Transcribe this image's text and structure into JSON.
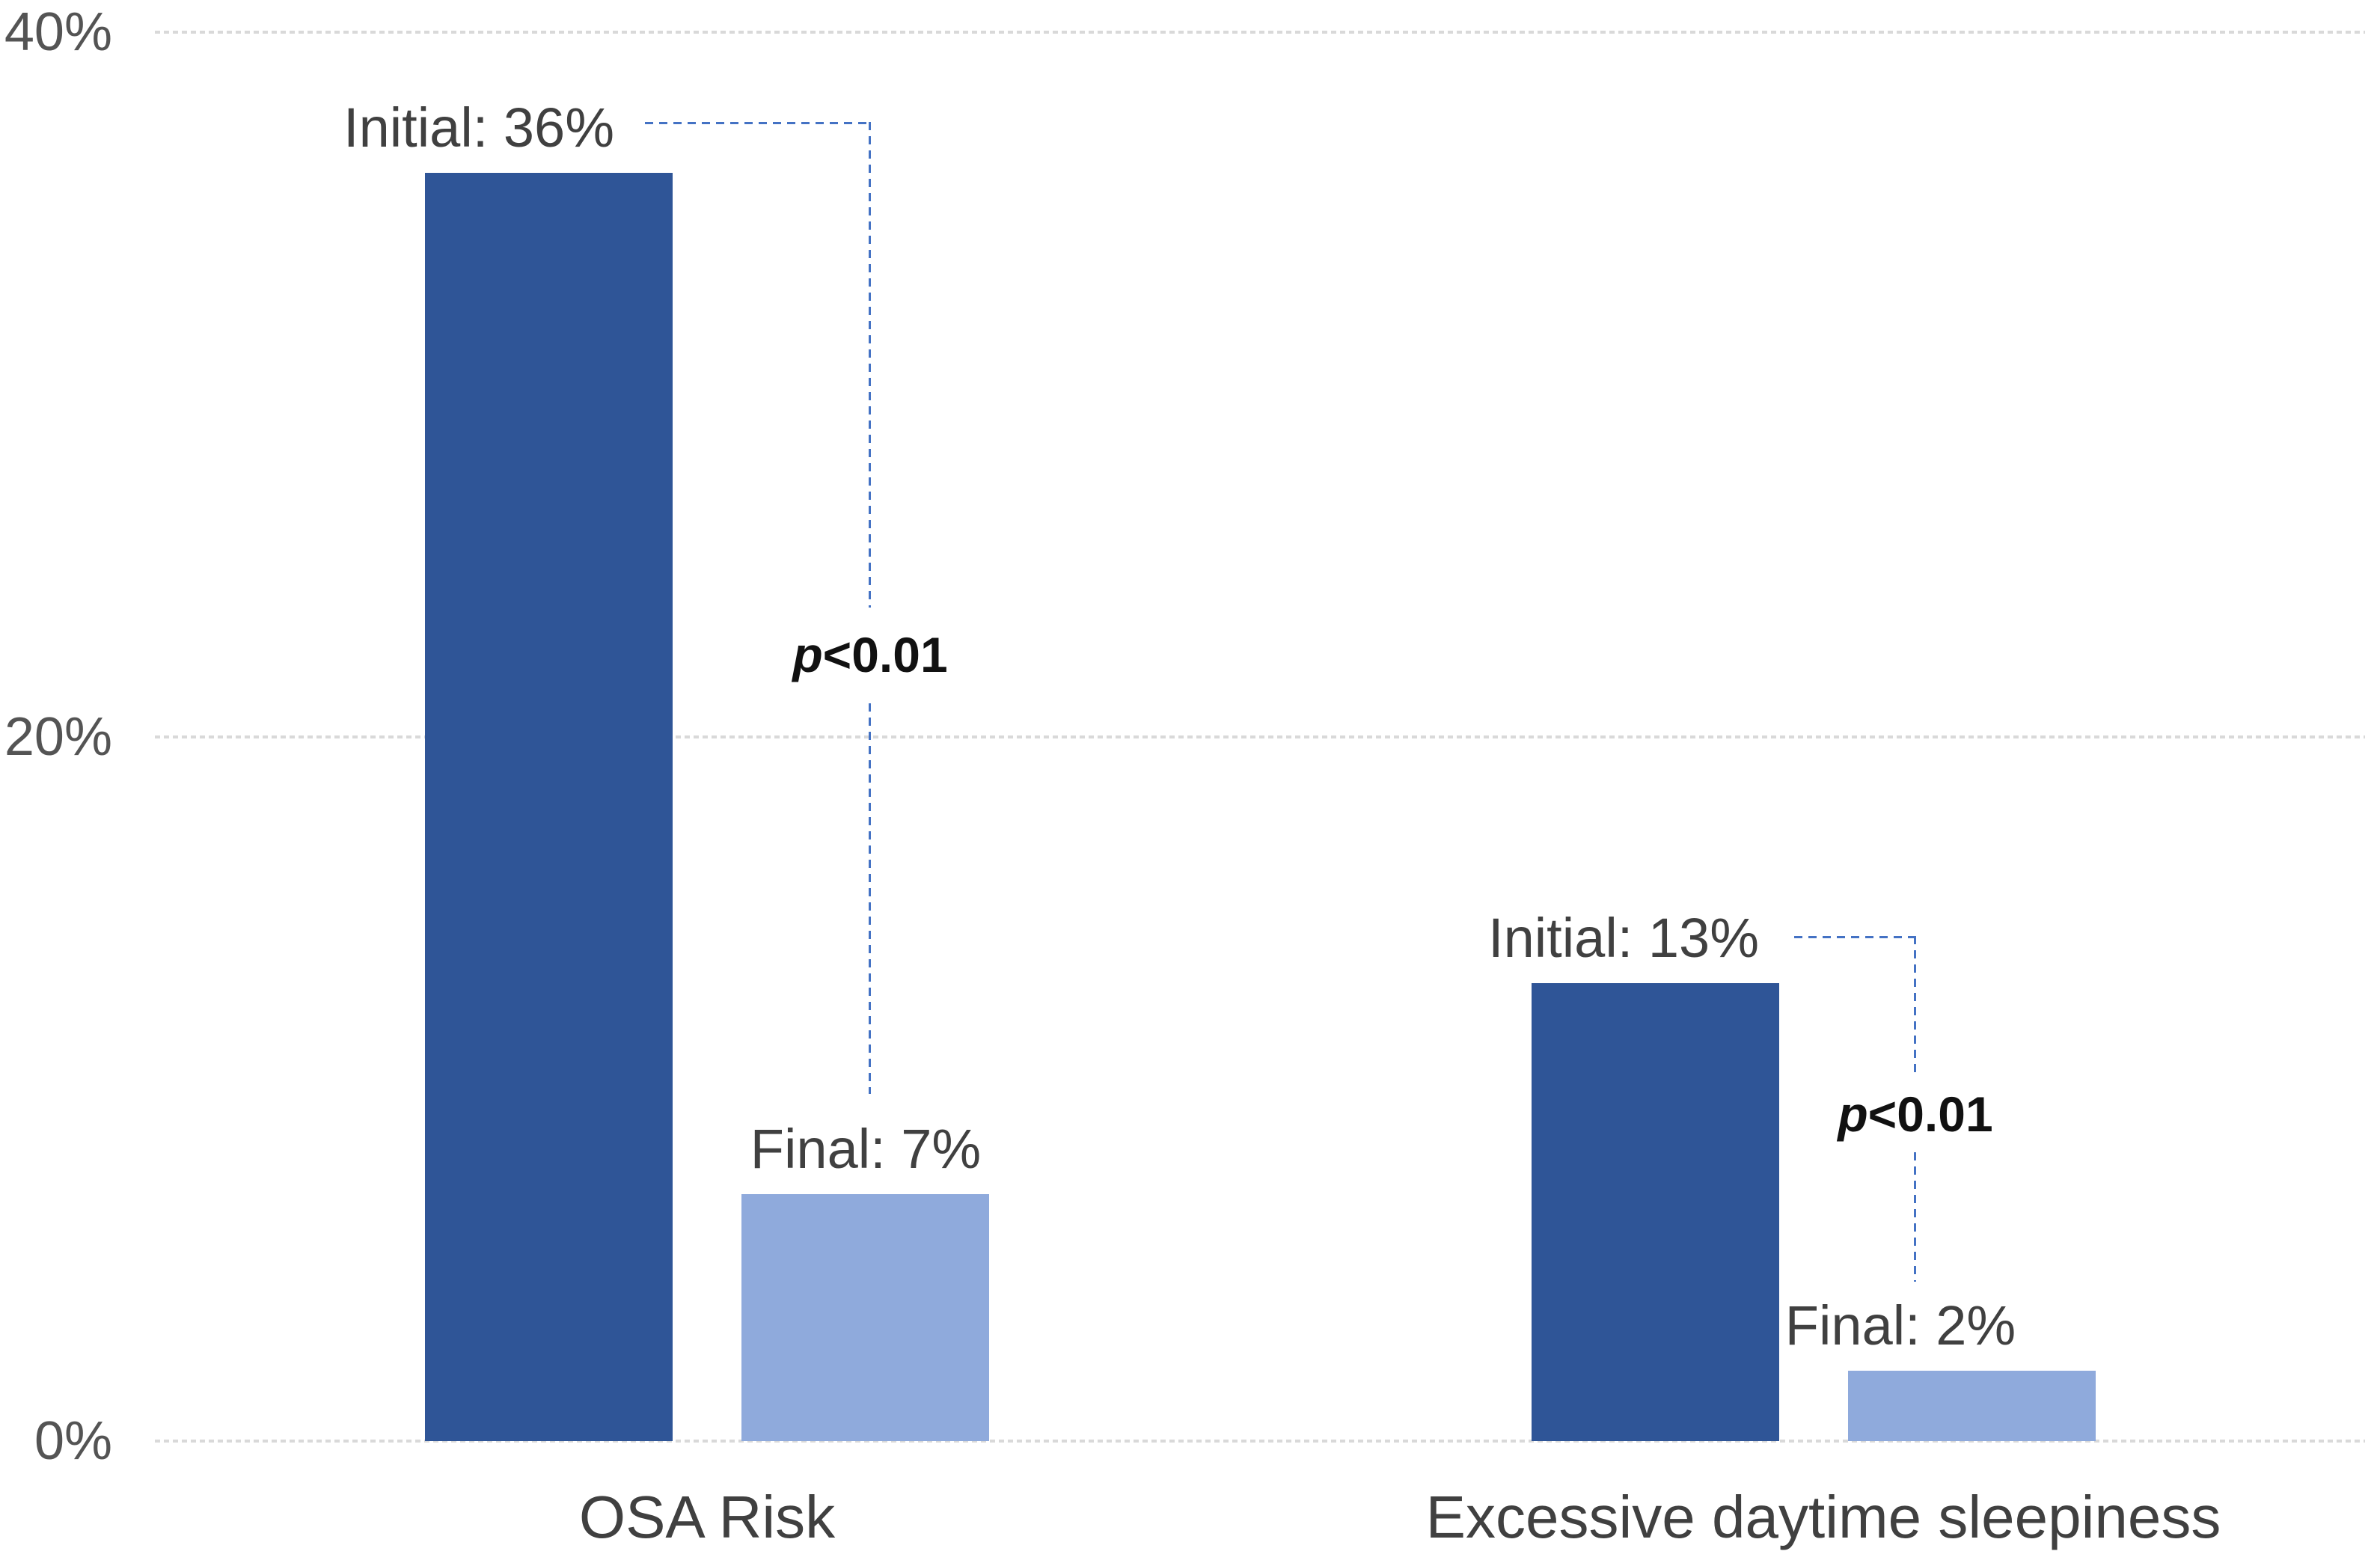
{
  "chart_data": {
    "type": "bar",
    "title": "",
    "xlabel": "",
    "ylabel": "",
    "categories": [
      "OSA Risk",
      "Excessive daytime sleepiness"
    ],
    "series": [
      {
        "name": "Initial",
        "values": [
          36,
          13
        ],
        "color": "#2F5597"
      },
      {
        "name": "Final",
        "values": [
          7,
          2
        ],
        "color": "#8FAADC"
      }
    ],
    "bar_labels": [
      [
        "Initial: 36%",
        "Final: 7%"
      ],
      [
        "Initial: 13%",
        "Final: 2%"
      ]
    ],
    "annotations": [
      {
        "label": "p<0.01",
        "p_italic": "p",
        "comparison": "<0.01",
        "category": "OSA Risk"
      },
      {
        "label": "p<0.01",
        "p_italic": "p",
        "comparison": "<0.01",
        "category": "Excessive daytime sleepiness"
      }
    ],
    "ylim": [
      0,
      40
    ],
    "yticks": [
      "0%",
      "20%",
      "40%"
    ],
    "ytick_values": [
      0,
      20,
      40
    ],
    "grid": true,
    "gridline_style": "dotted",
    "legend_position": "none",
    "colors": {
      "initial_bar": "#2F5597",
      "final_bar": "#8FAADC",
      "bracket_line": "#4472C4",
      "gridline": "#D9D9D9",
      "axis_text": "#545454",
      "label_text": "#404040",
      "p_value_text": "#111111",
      "background": "#FFFFFF"
    }
  }
}
